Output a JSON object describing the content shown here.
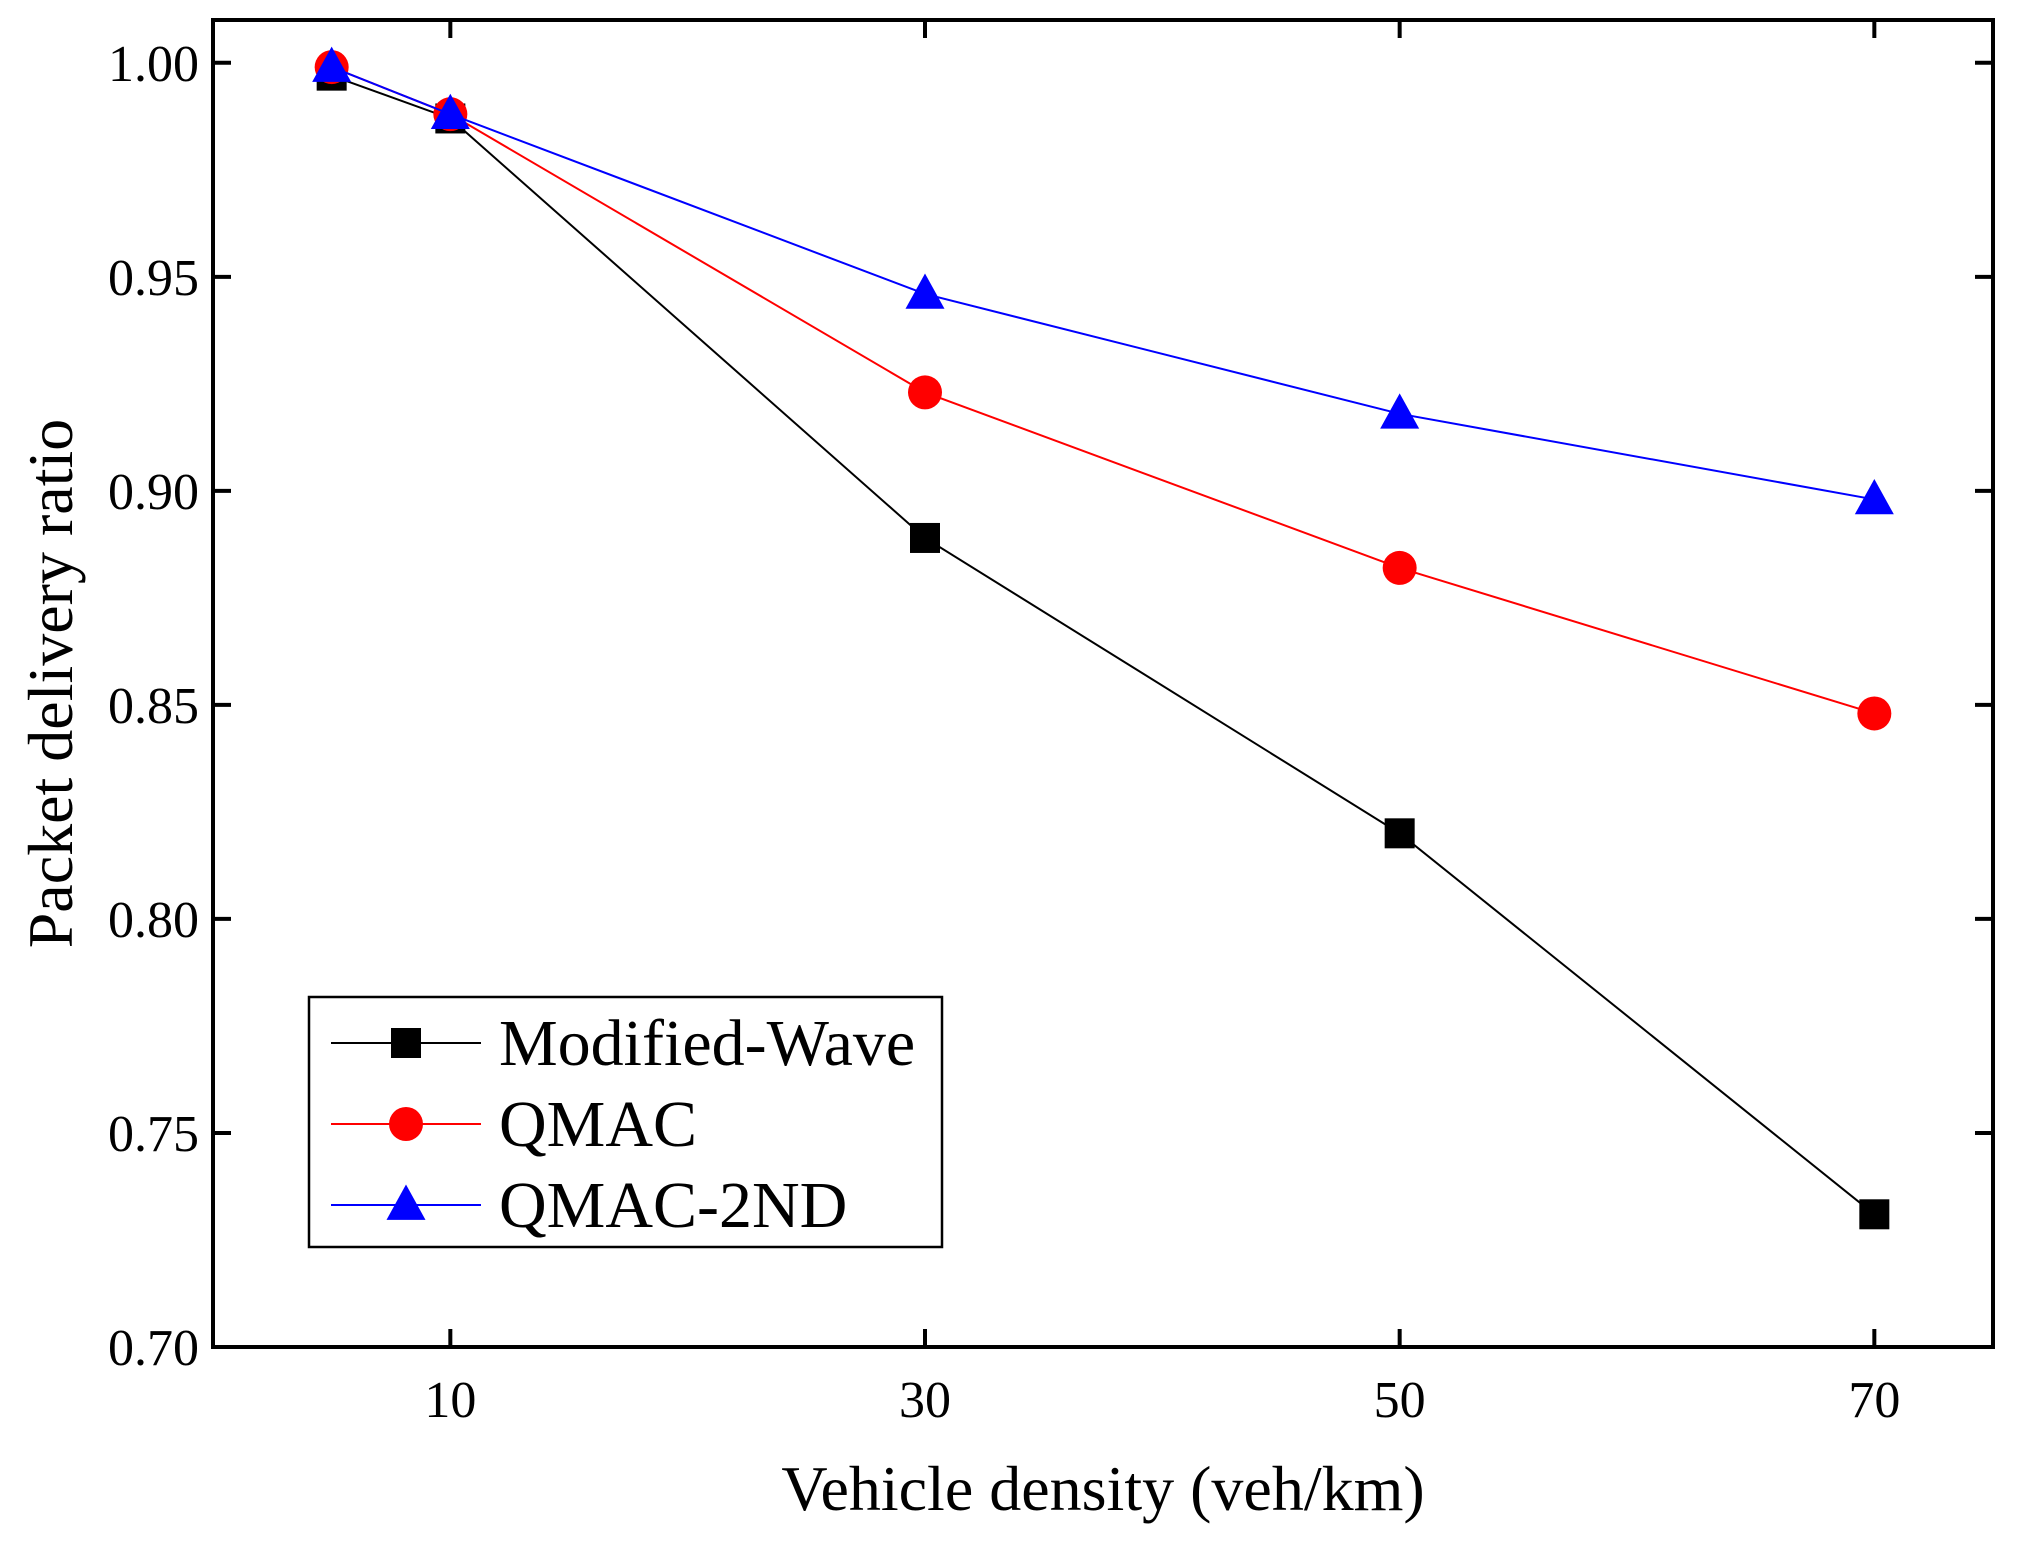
{
  "chart_data": {
    "type": "line",
    "title": "",
    "xlabel": "Vehicle density (veh/km)",
    "ylabel": "Packet delivery ratio",
    "xlim": [
      0,
      75
    ],
    "ylim": [
      0.7,
      1.01
    ],
    "xticks": [
      10,
      30,
      50,
      70
    ],
    "xtick_labels": [
      "10",
      "30",
      "50",
      "70"
    ],
    "yticks": [
      0.7,
      0.75,
      0.8,
      0.85,
      0.9,
      0.95,
      1.0
    ],
    "ytick_labels": [
      "0.70",
      "0.75",
      "0.80",
      "0.85",
      "0.90",
      "0.95",
      "1.00"
    ],
    "grid": false,
    "legend_position": "bottom-left",
    "series": [
      {
        "name": "Modified-Wave",
        "color": "#000000",
        "marker": "square",
        "x": [
          5,
          10,
          30,
          50,
          70
        ],
        "y": [
          0.997,
          0.987,
          0.889,
          0.82,
          0.731
        ]
      },
      {
        "name": "QMAC",
        "color": "#ff0000",
        "marker": "circle",
        "x": [
          5,
          10,
          30,
          50,
          70
        ],
        "y": [
          0.999,
          0.988,
          0.923,
          0.882,
          0.848
        ]
      },
      {
        "name": "QMAC-2ND",
        "color": "#0000ff",
        "marker": "triangle",
        "x": [
          5,
          10,
          30,
          50,
          70
        ],
        "y": [
          0.999,
          0.988,
          0.946,
          0.918,
          0.898
        ]
      }
    ]
  }
}
